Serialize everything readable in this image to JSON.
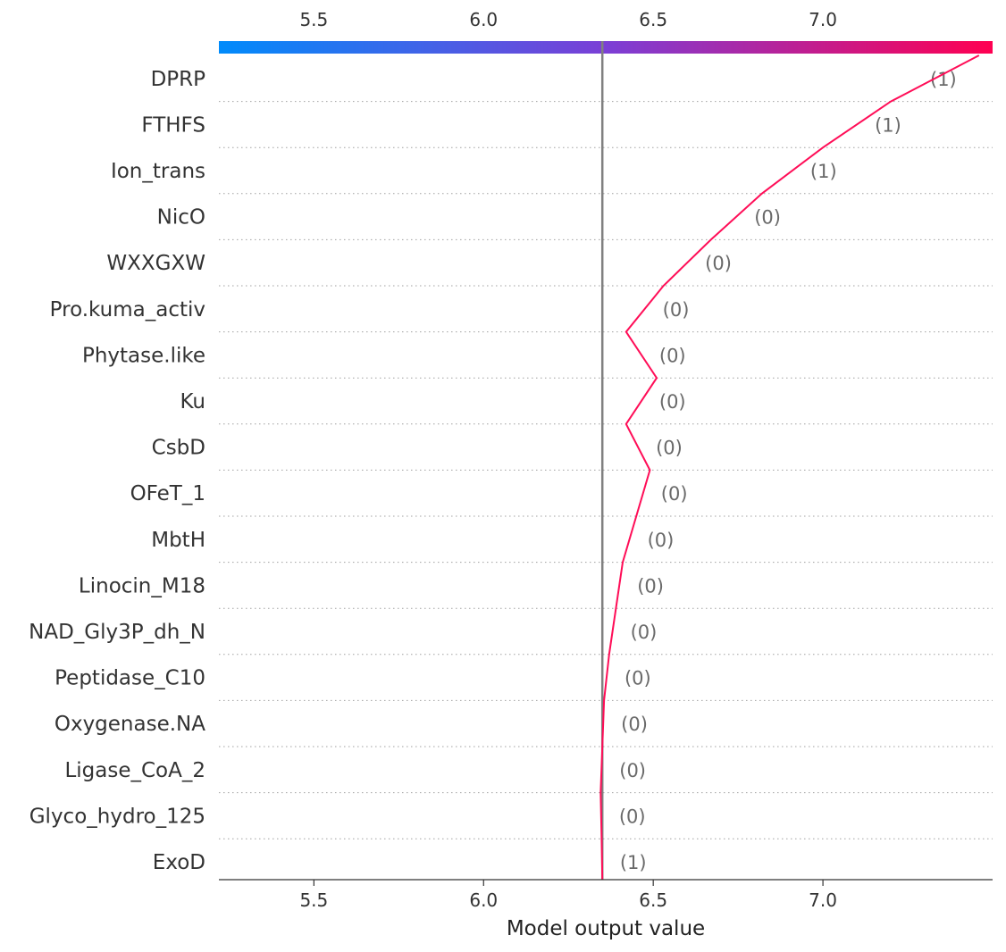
{
  "chart_data": {
    "type": "decision_plot",
    "xlabel": "Model output value",
    "xlim": [
      5.22,
      7.5
    ],
    "ticks": [
      5.5,
      6.0,
      6.5,
      7.0
    ],
    "tick_labels": [
      "5.5",
      "6.0",
      "6.5",
      "7.0"
    ],
    "base_value": 6.35,
    "grid": "dotted horizontal lines between features",
    "colorbar": {
      "position": "top",
      "from_color": "#008bfb",
      "mid_color": "#7b3fd6",
      "to_color": "#ff0051"
    },
    "line_color": "#ff0d57",
    "features": [
      {
        "name": "DPRP",
        "value_label": "(1)",
        "output": 7.46
      },
      {
        "name": "FTHFS",
        "value_label": "(1)",
        "output": 7.2
      },
      {
        "name": "Ion_trans",
        "value_label": "(1)",
        "output": 7.0
      },
      {
        "name": "NicO",
        "value_label": "(0)",
        "output": 6.82
      },
      {
        "name": "WXXGXW",
        "value_label": "(0)",
        "output": 6.67
      },
      {
        "name": "Pro.kuma_activ",
        "value_label": "(0)",
        "output": 6.53
      },
      {
        "name": "Phytase.like",
        "value_label": "(0)",
        "output": 6.42
      },
      {
        "name": "Ku",
        "value_label": "(0)",
        "output": 6.51
      },
      {
        "name": "CsbD",
        "value_label": "(0)",
        "output": 6.42
      },
      {
        "name": "OFeT_1",
        "value_label": "(0)",
        "output": 6.49
      },
      {
        "name": "MbtH",
        "value_label": "(0)",
        "output": 6.45
      },
      {
        "name": "Linocin_M18",
        "value_label": "(0)",
        "output": 6.41
      },
      {
        "name": "NAD_Gly3P_dh_N",
        "value_label": "(0)",
        "output": 6.39
      },
      {
        "name": "Peptidase_C10",
        "value_label": "(0)",
        "output": 6.37
      },
      {
        "name": "Oxygenase.NA",
        "value_label": "(0)",
        "output": 6.355
      },
      {
        "name": "Ligase_CoA_2",
        "value_label": "(0)",
        "output": 6.35
      },
      {
        "name": "Glyco_hydro_125",
        "value_label": "(0)",
        "output": 6.345
      },
      {
        "name": "ExoD",
        "value_label": "(1)",
        "output": 6.348
      }
    ],
    "start_output": 6.35
  }
}
